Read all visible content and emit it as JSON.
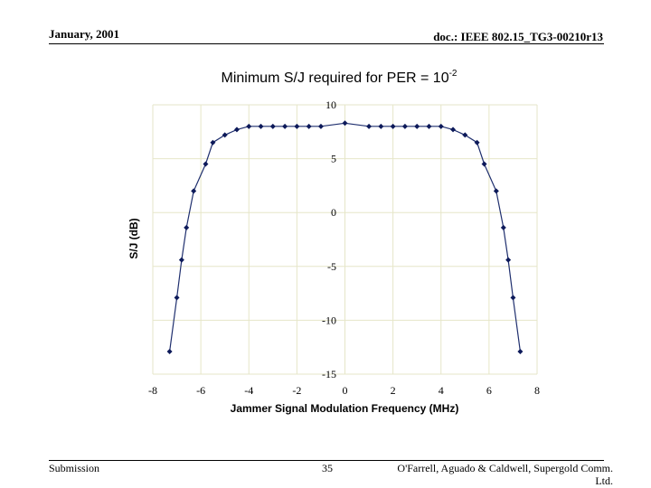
{
  "header": {
    "date": "January, 2001",
    "doc_id": "doc.: IEEE 802.15_TG3-00210r13"
  },
  "footer": {
    "left": "Submission",
    "page_number": "35",
    "authors_line1": "O'Farrell, Aguado & Caldwell, Supergold Comm.",
    "authors_line2": "Ltd."
  },
  "chart_data": {
    "type": "scatter",
    "title_main": "Minimum S/J required for PER = 10",
    "title_exponent": "-2",
    "xlabel": "Jammer Signal Modulation Frequency (MHz)",
    "ylabel": "S/J (dB)",
    "xlim": [
      -8,
      8
    ],
    "ylim": [
      -15,
      10
    ],
    "xticks": [
      -8,
      -6,
      -4,
      -2,
      0,
      2,
      4,
      6,
      8
    ],
    "yticks": [
      10,
      5,
      0,
      -5,
      -10,
      -15
    ],
    "grid": true,
    "line_color": "#1f2f6e",
    "marker_color": "#0d1a5a",
    "grid_color": "#e6e6c8",
    "series": [
      {
        "x": [
          -7.3,
          -7.0,
          -6.8,
          -6.6,
          -6.3,
          -5.8,
          -5.5,
          -5.0,
          -4.5,
          -4.0,
          -3.5,
          -3.0,
          -2.5,
          -2.0,
          -1.5,
          -1.0,
          0.0,
          1.0,
          1.5,
          2.0,
          2.5,
          3.0,
          3.5,
          4.0,
          4.5,
          5.0,
          5.5,
          5.8,
          6.3,
          6.6,
          6.8,
          7.0,
          7.3
        ],
        "y": [
          -12.9,
          -7.9,
          -4.4,
          -1.4,
          2.0,
          4.5,
          6.5,
          7.2,
          7.7,
          8.0,
          8.0,
          8.0,
          8.0,
          8.0,
          8.0,
          8.0,
          8.3,
          8.0,
          8.0,
          8.0,
          8.0,
          8.0,
          8.0,
          8.0,
          7.7,
          7.2,
          6.5,
          4.5,
          2.0,
          -1.4,
          -4.4,
          -7.9,
          -12.9
        ]
      }
    ]
  }
}
